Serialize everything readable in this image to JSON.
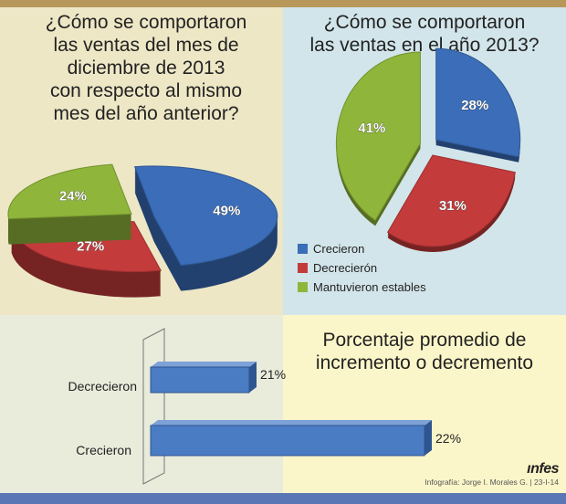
{
  "colors": {
    "crecieron": "#3b6db8",
    "decrecieron": "#c43b3b",
    "estables": "#8fb53a"
  },
  "left_panel": {
    "title": "¿Cómo se comportaron\nlas ventas del mes de\ndiciembre de 2013\ncon respecto al mismo\nmes del año anterior?"
  },
  "right_panel": {
    "title": "¿Cómo se comportaron\nlas ventas en el año 2013?"
  },
  "legend": [
    {
      "label": "Crecieron",
      "key": "crecieron"
    },
    {
      "label": "Decrecierón",
      "key": "decrecieron"
    },
    {
      "label": "Mantuvieron estables",
      "key": "estables"
    }
  ],
  "bar_panel": {
    "title": "Porcentaje promedio de\nincremento o decremento"
  },
  "credit": "Infografía:  Jorge I. Morales G.  |  23-I-14",
  "logo": "infes",
  "chart_data": [
    {
      "type": "pie",
      "title": "¿Cómo se comportaron las ventas del mes de diciembre de 2013 con respecto al mismo mes del año anterior?",
      "categories": [
        "Crecieron",
        "Decrecierón",
        "Mantuvieron estables"
      ],
      "values": [
        49,
        27,
        24
      ],
      "labels": [
        "49%",
        "27%",
        "24%"
      ]
    },
    {
      "type": "pie",
      "title": "¿Cómo se comportaron las ventas en el año 2013?",
      "categories": [
        "Crecieron",
        "Decrecierón",
        "Mantuvieron estables"
      ],
      "values": [
        28,
        31,
        41
      ],
      "labels": [
        "28%",
        "31%",
        "41%"
      ]
    },
    {
      "type": "bar",
      "orientation": "horizontal",
      "title": "Porcentaje promedio de incremento o decremento",
      "categories": [
        "Decrecieron",
        "Crecieron"
      ],
      "values": [
        21,
        22
      ],
      "labels": [
        "21%",
        "22%"
      ],
      "axis_break": true
    }
  ]
}
